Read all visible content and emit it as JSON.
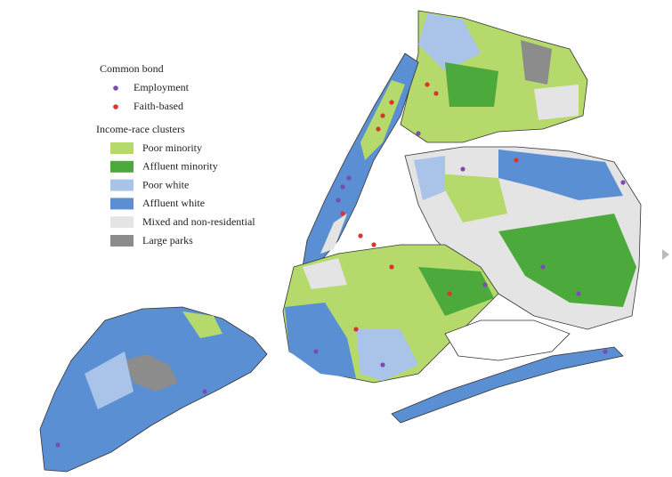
{
  "legend": {
    "common_bond": {
      "title": "Common bond",
      "items": [
        {
          "label": "Employment",
          "color": "#7b4bb0"
        },
        {
          "label": "Faith-based",
          "color": "#d9352a"
        }
      ]
    },
    "clusters": {
      "title": "Income-race clusters",
      "items": [
        {
          "label": "Poor minority",
          "color": "#b5d96a"
        },
        {
          "label": "Affluent minority",
          "color": "#4caa3c"
        },
        {
          "label": "Poor white",
          "color": "#a9c4e8"
        },
        {
          "label": "Affluent white",
          "color": "#5b8fd4"
        },
        {
          "label": "Mixed and non-residential",
          "color": "#e4e4e4"
        },
        {
          "label": "Large parks",
          "color": "#8c8c8c"
        }
      ]
    }
  }
}
